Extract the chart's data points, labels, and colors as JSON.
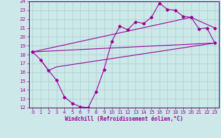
{
  "xlabel": "Windchill (Refroidissement éolien,°C)",
  "bg_color": "#cce8e8",
  "grid_color": "#aacfcf",
  "line_color": "#990099",
  "spine_color": "#440044",
  "xlim": [
    -0.5,
    23.5
  ],
  "ylim": [
    12,
    24
  ],
  "xticks": [
    0,
    1,
    2,
    3,
    4,
    5,
    6,
    7,
    8,
    9,
    10,
    11,
    12,
    13,
    14,
    15,
    16,
    17,
    18,
    19,
    20,
    21,
    22,
    23
  ],
  "yticks": [
    12,
    13,
    14,
    15,
    16,
    17,
    18,
    19,
    20,
    21,
    22,
    23,
    24
  ],
  "line1_x": [
    0,
    1,
    2,
    3,
    4,
    5,
    6,
    7,
    8,
    9,
    10,
    11,
    12,
    13,
    14,
    15,
    16,
    17,
    18,
    19,
    20,
    21,
    22,
    23
  ],
  "line1_y": [
    18.3,
    17.4,
    16.2,
    15.1,
    13.2,
    12.5,
    12.1,
    12.0,
    13.8,
    16.3,
    19.5,
    21.2,
    20.8,
    21.7,
    21.5,
    22.2,
    23.8,
    23.1,
    23.0,
    22.3,
    22.2,
    20.9,
    21.0,
    19.3
  ],
  "line2_x": [
    0,
    23
  ],
  "line2_y": [
    18.3,
    19.3
  ],
  "line3_x": [
    0,
    20,
    23
  ],
  "line3_y": [
    18.3,
    22.2,
    21.0
  ],
  "line4_x": [
    1,
    2,
    3,
    23
  ],
  "line4_y": [
    17.4,
    16.2,
    16.6,
    19.3
  ],
  "xlabel_fontsize": 5.5,
  "tick_fontsize": 5,
  "figsize": [
    3.2,
    2.0
  ],
  "dpi": 100
}
